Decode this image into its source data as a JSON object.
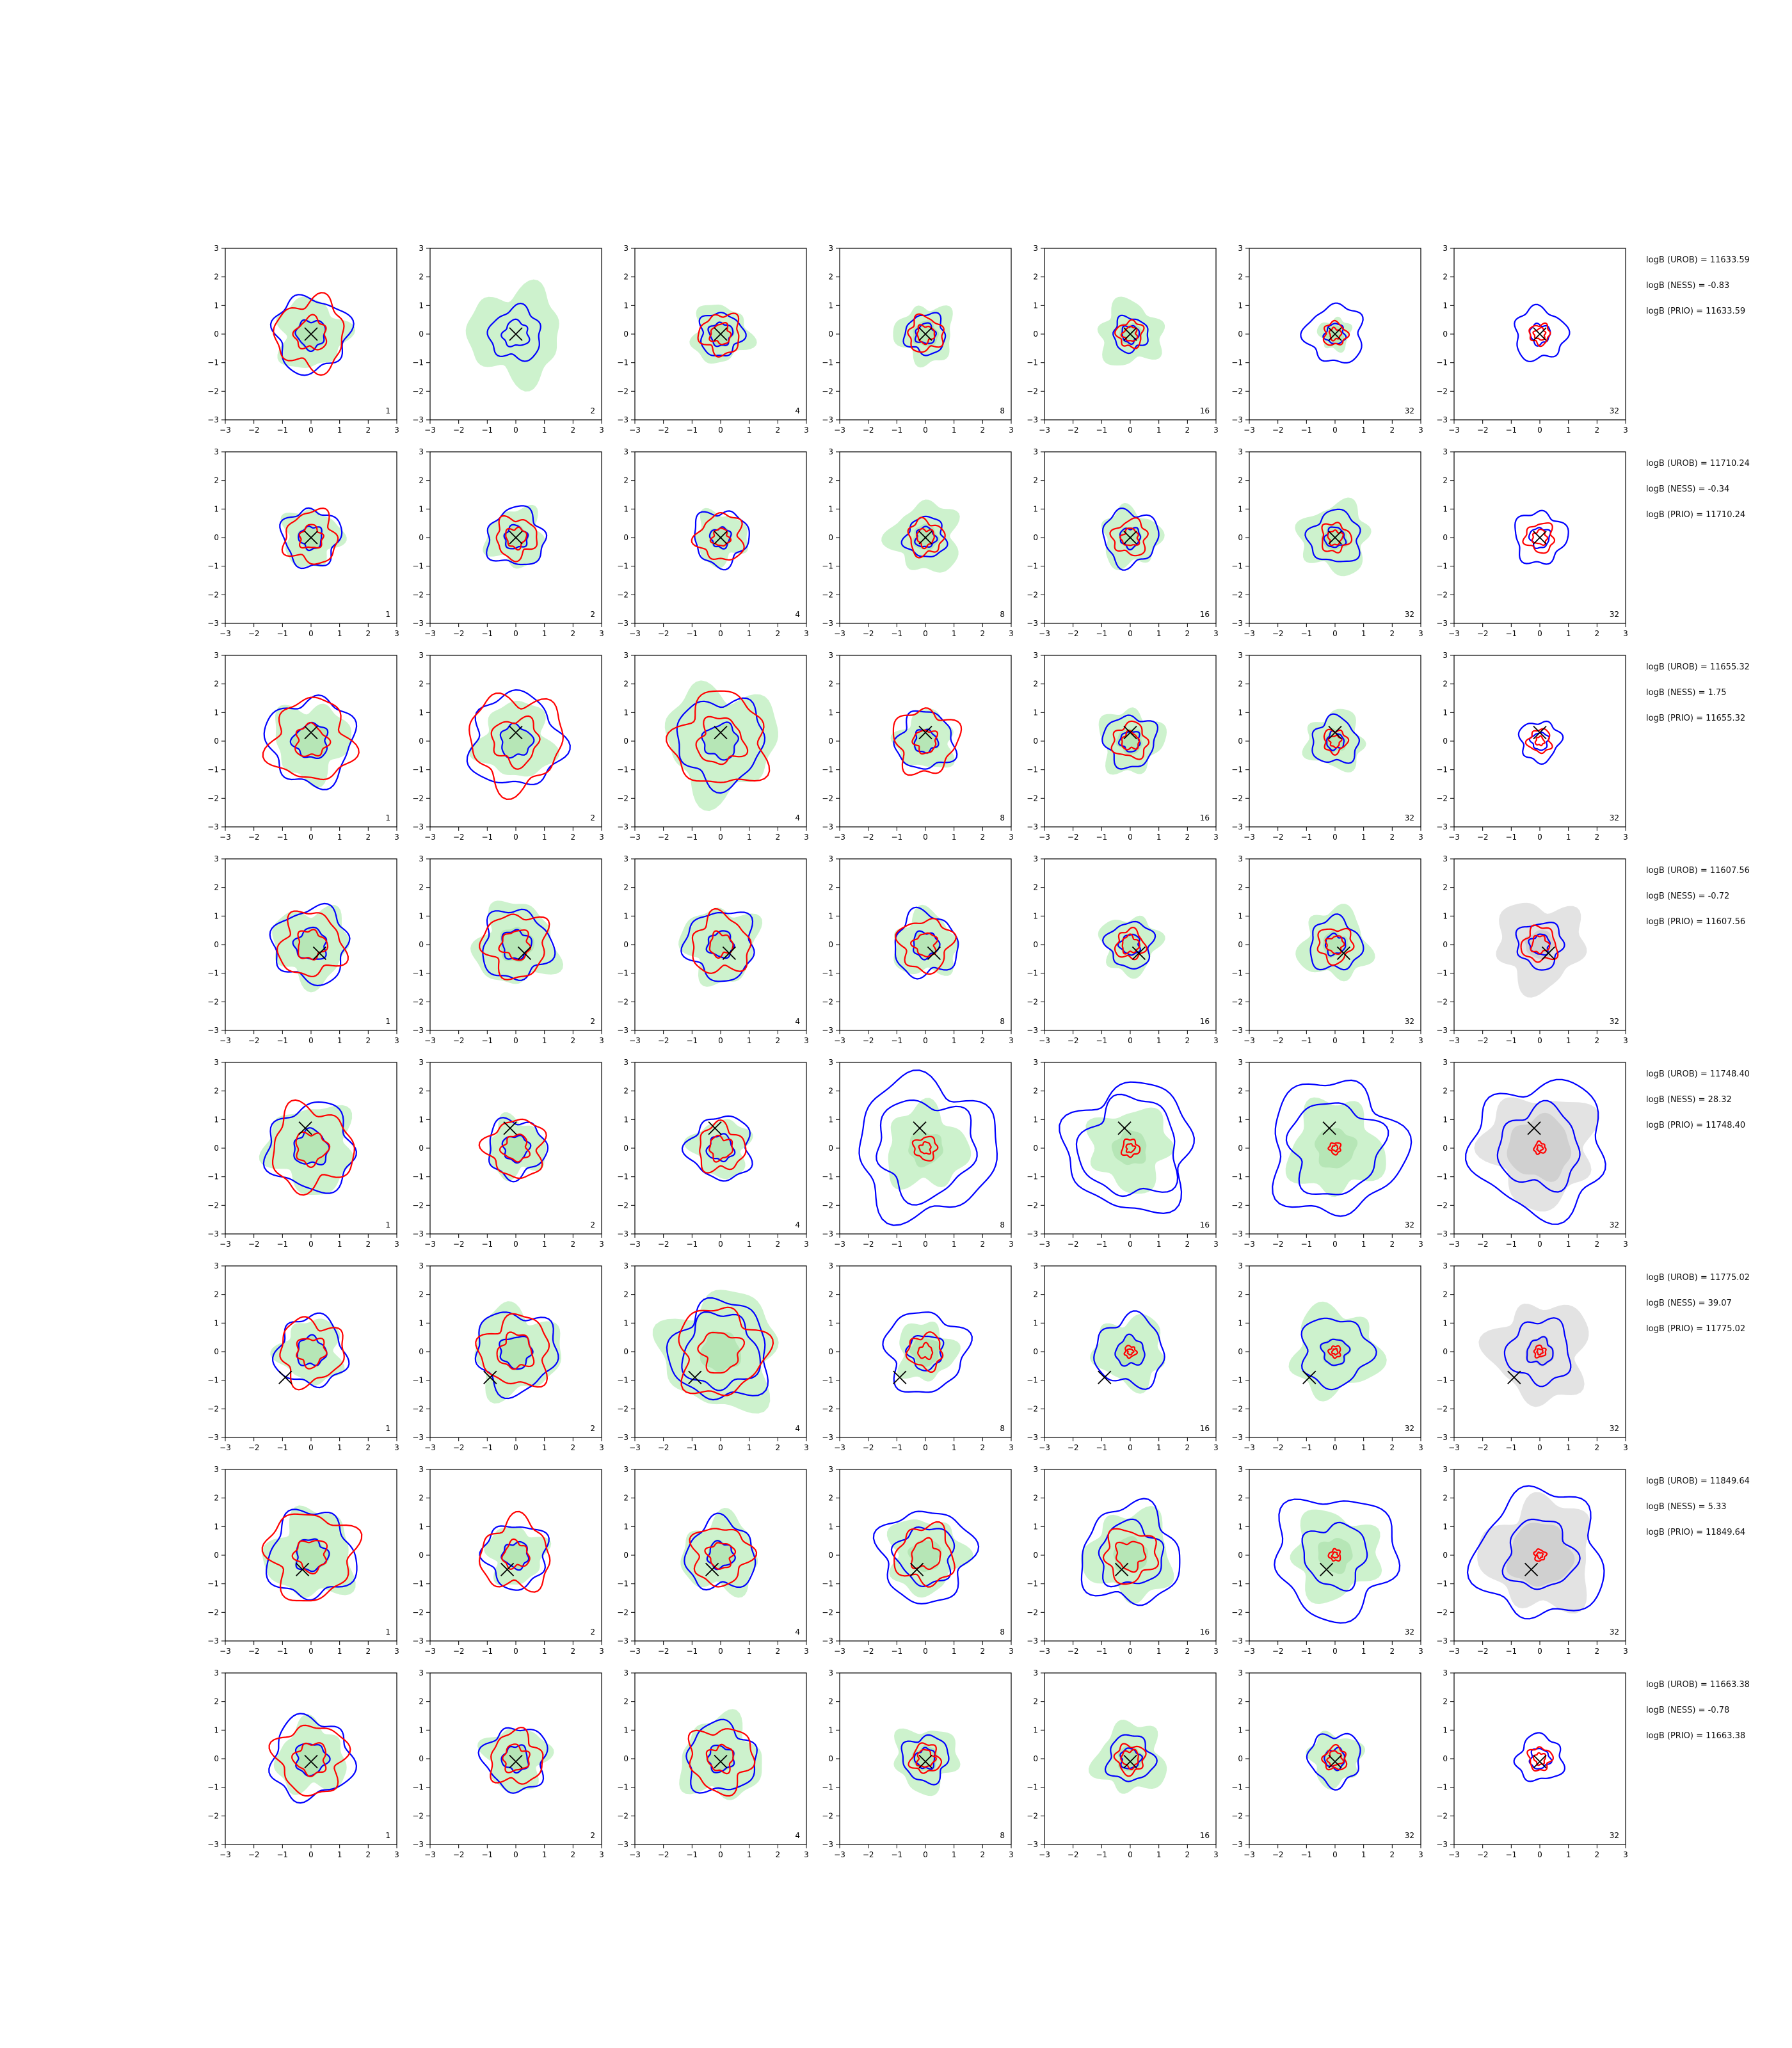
{
  "figure": {
    "background": "#ffffff"
  },
  "colors": {
    "uniform_contour": "#0000ff",
    "method_contour": "#ff0000",
    "fill_outer": "#cdf2cd",
    "fill_inner": "#b6e6b6",
    "prior_fill": "#e3e3e3",
    "prior_fill_inner": "#d0d0d0",
    "truth_marker": "#000000",
    "axes": "#000000"
  },
  "chart_data": {
    "type": "contour-grid",
    "rows": 8,
    "columns": 7,
    "xlim": [
      -3,
      3
    ],
    "ylim": [
      -3,
      3
    ],
    "xticks": [
      "−3",
      "−2",
      "−1",
      "0",
      "1",
      "2",
      "3"
    ],
    "yticks": [
      "−3",
      "−2",
      "−1",
      "0",
      "1",
      "2",
      "3"
    ],
    "panel_labels": [
      "1",
      "2",
      "4",
      "8",
      "16",
      "32",
      "32"
    ],
    "grid": false,
    "marker": "x",
    "row_truth": [
      [
        0.0,
        0.0
      ],
      [
        0.0,
        0.0
      ],
      [
        0.0,
        0.3
      ],
      [
        0.3,
        -0.3
      ],
      [
        -0.2,
        0.7
      ],
      [
        -0.9,
        -0.9
      ],
      [
        -0.3,
        -0.5
      ],
      [
        0.0,
        -0.1
      ]
    ],
    "row_logB": [
      {
        "urob": "logB (UROB) = 11633.59",
        "ness": "logB (NESS) = -0.83",
        "prio": "logB (PRIO) = 11633.59"
      },
      {
        "urob": "logB (UROB) = 11710.24",
        "ness": "logB (NESS) = -0.34",
        "prio": "logB (PRIO) = 11710.24"
      },
      {
        "urob": "logB (UROB) = 11655.32",
        "ness": "logB (NESS) = 1.75",
        "prio": "logB (PRIO) = 11655.32"
      },
      {
        "urob": "logB (UROB) = 11607.56",
        "ness": "logB (NESS) = -0.72",
        "prio": "logB (PRIO) = 11607.56"
      },
      {
        "urob": "logB (UROB) = 11748.40",
        "ness": "logB (NESS) = 28.32",
        "prio": "logB (PRIO) = 11748.40"
      },
      {
        "urob": "logB (UROB) = 11775.02",
        "ness": "logB (NESS) = 39.07",
        "prio": "logB (PRIO) = 11775.02"
      },
      {
        "urob": "logB (UROB) = 11849.64",
        "ness": "logB (NESS) = 5.33",
        "prio": "logB (PRIO) = 11849.64"
      },
      {
        "urob": "logB (UROB) = 11663.38",
        "ness": "logB (NESS) = -0.78",
        "prio": "logB (PRIO) = 11663.38"
      }
    ],
    "cells": [
      [
        {
          "fill": [
            1.2,
            0.55
          ],
          "blue": [
            1.3,
            0.5
          ],
          "red": [
            1.2,
            0.55
          ]
        },
        {
          "fill": [
            1.6,
            0.0
          ],
          "blue": [
            0.9,
            0.45
          ],
          "red": []
        },
        {
          "fill": [
            1.0,
            0.45
          ],
          "blue": [
            0.75,
            0.4
          ],
          "red": [
            0.7,
            0.35
          ]
        },
        {
          "fill": [
            1.0,
            0.45
          ],
          "blue": [
            0.7,
            0.35
          ],
          "red": [
            0.6,
            0.3
          ]
        },
        {
          "fill": [
            1.1,
            0.4
          ],
          "blue": [
            0.6,
            0.3
          ],
          "red": [
            0.45,
            0.25
          ]
        },
        {
          "fill": [
            0.55,
            0.3
          ],
          "blue": [
            1.0,
            0.35
          ],
          "red": [
            0.4,
            0.2
          ]
        },
        {
          "fill": [],
          "blue": [
            0.9,
            0.35
          ],
          "red": [
            0.35,
            0.2
          ]
        }
      ],
      [
        {
          "fill": [
            1.0,
            0.45
          ],
          "blue": [
            1.0,
            0.4
          ],
          "red": [
            0.9,
            0.4
          ]
        },
        {
          "fill": [
            1.0,
            0.45
          ],
          "blue": [
            1.0,
            0.4
          ],
          "red": [
            0.7,
            0.35
          ]
        },
        {
          "fill": [
            0.9,
            0.4
          ],
          "blue": [
            0.95,
            0.35
          ],
          "red": [
            0.8,
            0.3
          ]
        },
        {
          "fill": [
            1.2,
            0.45
          ],
          "blue": [
            0.7,
            0.35
          ],
          "red": [
            0.6,
            0.3
          ]
        },
        {
          "fill": [
            1.0,
            0.4
          ],
          "blue": [
            0.95,
            0.35
          ],
          "red": [
            0.6,
            0.3
          ]
        },
        {
          "fill": [
            1.2,
            0.45
          ],
          "blue": [
            0.9,
            0.35
          ],
          "red": [
            0.5,
            0.25
          ]
        },
        {
          "fill": [],
          "blue": [
            0.9,
            0.35
          ],
          "red": [
            0.5,
            0.25
          ]
        }
      ],
      [
        {
          "fill": [
            1.3,
            0.6
          ],
          "blue": [
            1.5,
            0.6
          ],
          "red": [
            1.4,
            0.55
          ]
        },
        {
          "fill": [
            1.3,
            0.55
          ],
          "blue": [
            1.6,
            0.55
          ],
          "red": [
            1.6,
            0.8
          ]
        },
        {
          "fill": [
            1.9,
            0.6
          ],
          "blue": [
            1.5,
            0.6
          ],
          "red": [
            1.6,
            0.8
          ]
        },
        {
          "fill": [
            1.0,
            0.45
          ],
          "blue": [
            1.0,
            0.4
          ],
          "red": [
            1.1,
            0.4
          ]
        },
        {
          "fill": [
            1.1,
            0.45
          ],
          "blue": [
            0.9,
            0.35
          ],
          "red": [
            0.6,
            0.3
          ]
        },
        {
          "fill": [
            1.0,
            0.4
          ],
          "blue": [
            0.8,
            0.3
          ],
          "red": [
            0.4,
            0.2
          ]
        },
        {
          "fill": [],
          "blue": [
            0.7,
            0.3
          ],
          "red": [
            0.4,
            0.15
          ]
        }
      ],
      [
        {
          "fill": [
            1.3,
            0.55
          ],
          "blue": [
            1.3,
            0.55
          ],
          "red": [
            1.1,
            0.5
          ]
        },
        {
          "fill": [
            1.4,
            0.6
          ],
          "blue": [
            1.2,
            0.5
          ],
          "red": [
            1.1,
            0.5
          ]
        },
        {
          "fill": [
            1.3,
            0.5
          ],
          "blue": [
            1.2,
            0.45
          ],
          "red": [
            1.0,
            0.4
          ]
        },
        {
          "fill": [
            1.1,
            0.45
          ],
          "blue": [
            1.1,
            0.45
          ],
          "red": [
            0.9,
            0.4
          ]
        },
        {
          "fill": [
            1.0,
            0.4
          ],
          "blue": [
            0.8,
            0.35
          ],
          "red": [
            0.5,
            0.3
          ]
        },
        {
          "fill": [
            1.2,
            0.45
          ],
          "blue": [
            0.9,
            0.35
          ],
          "red": [
            0.6,
            0.3
          ]
        },
        {
          "fill": [
            1.5,
            0.5
          ],
          "blue": [
            0.8,
            0.35
          ],
          "red": [
            0.6,
            0.3
          ]
        }
      ],
      [
        {
          "fill": [
            1.5,
            0.6
          ],
          "blue": [
            1.5,
            0.6
          ],
          "red": [
            1.4,
            0.55
          ]
        },
        {
          "fill": [
            1.0,
            0.45
          ],
          "blue": [
            1.0,
            0.45
          ],
          "red": [
            1.0,
            0.45
          ]
        },
        {
          "fill": [
            1.0,
            0.4
          ],
          "blue": [
            1.1,
            0.45
          ],
          "red": [
            0.8,
            0.4
          ]
        },
        {
          "fill": [
            1.4,
            0.6
          ],
          "blue": [
            2.4,
            1.7
          ],
          "red": [
            0.4,
            0.2
          ]
        },
        {
          "fill": [
            1.4,
            0.6
          ],
          "blue": [
            2.2,
            1.7
          ],
          "red": [
            0.3,
            0.15
          ]
        },
        {
          "fill": [
            1.6,
            0.7
          ],
          "blue": [
            2.3,
            1.6
          ],
          "red": [
            0.2,
            0.1
          ]
        },
        {
          "fill": [
            1.9,
            1.1
          ],
          "blue": [
            2.3,
            1.4
          ],
          "red": [
            0.2,
            0.1
          ]
        }
      ],
      [
        {
          "fill": [
            1.1,
            0.5
          ],
          "blue": [
            1.2,
            0.5
          ],
          "red": [
            1.1,
            0.5
          ]
        },
        {
          "fill": [
            1.5,
            0.6
          ],
          "blue": [
            1.4,
            0.55
          ],
          "red": [
            1.2,
            0.6
          ]
        },
        {
          "fill": [
            2.0,
            0.7
          ],
          "blue": [
            1.7,
            1.3
          ],
          "red": [
            1.5,
            0.7
          ]
        },
        {
          "fill": [
            1.0,
            0.5
          ],
          "blue": [
            1.4,
            0.6
          ],
          "red": [
            0.6,
            0.25
          ]
        },
        {
          "fill": [
            1.2,
            0.5
          ],
          "blue": [
            1.2,
            0.5
          ],
          "red": [
            0.2,
            0.1
          ]
        },
        {
          "fill": [
            1.5,
            0.5
          ],
          "blue": [
            1.2,
            0.45
          ],
          "red": [
            0.2,
            0.1
          ]
        },
        {
          "fill": [
            1.7,
            0.5
          ],
          "blue": [
            1.1,
            0.45
          ],
          "red": [
            0.2,
            0.1
          ]
        }
      ],
      [
        {
          "fill": [
            1.5,
            0.6
          ],
          "blue": [
            1.5,
            0.55
          ],
          "red": [
            1.5,
            0.55
          ]
        },
        {
          "fill": [
            1.0,
            0.45
          ],
          "blue": [
            1.1,
            0.45
          ],
          "red": [
            1.2,
            0.45
          ]
        },
        {
          "fill": [
            1.3,
            0.5
          ],
          "blue": [
            1.2,
            0.45
          ],
          "red": [
            1.0,
            0.45
          ]
        },
        {
          "fill": [
            1.3,
            0.55
          ],
          "blue": [
            1.6,
            1.0
          ],
          "red": [
            1.0,
            0.5
          ]
        },
        {
          "fill": [
            1.5,
            0.6
          ],
          "blue": [
            1.7,
            1.1
          ],
          "red": [
            0.9,
            0.5
          ]
        },
        {
          "fill": [
            1.5,
            0.6
          ],
          "blue": [
            2.1,
            1.1
          ],
          "red": [
            0.2,
            0.1
          ]
        },
        {
          "fill": [
            1.9,
            1.1
          ],
          "blue": [
            2.2,
            1.2
          ],
          "red": [
            0.2,
            0.1
          ]
        }
      ],
      [
        {
          "fill": [
            1.2,
            0.55
          ],
          "blue": [
            1.4,
            0.55
          ],
          "red": [
            1.2,
            0.55
          ]
        },
        {
          "fill": [
            1.1,
            0.45
          ],
          "blue": [
            1.1,
            0.45
          ],
          "red": [
            0.9,
            0.45
          ]
        },
        {
          "fill": [
            1.4,
            0.5
          ],
          "blue": [
            1.2,
            0.45
          ],
          "red": [
            1.1,
            0.45
          ]
        },
        {
          "fill": [
            1.1,
            0.45
          ],
          "blue": [
            0.8,
            0.35
          ],
          "red": [
            0.5,
            0.3
          ]
        },
        {
          "fill": [
            1.2,
            0.45
          ],
          "blue": [
            0.8,
            0.35
          ],
          "red": [
            0.5,
            0.3
          ]
        },
        {
          "fill": [
            0.9,
            0.4
          ],
          "blue": [
            0.9,
            0.35
          ],
          "red": [
            0.4,
            0.25
          ]
        },
        {
          "fill": [],
          "blue": [
            0.8,
            0.35
          ],
          "red": [
            0.4,
            0.2
          ]
        }
      ]
    ]
  }
}
